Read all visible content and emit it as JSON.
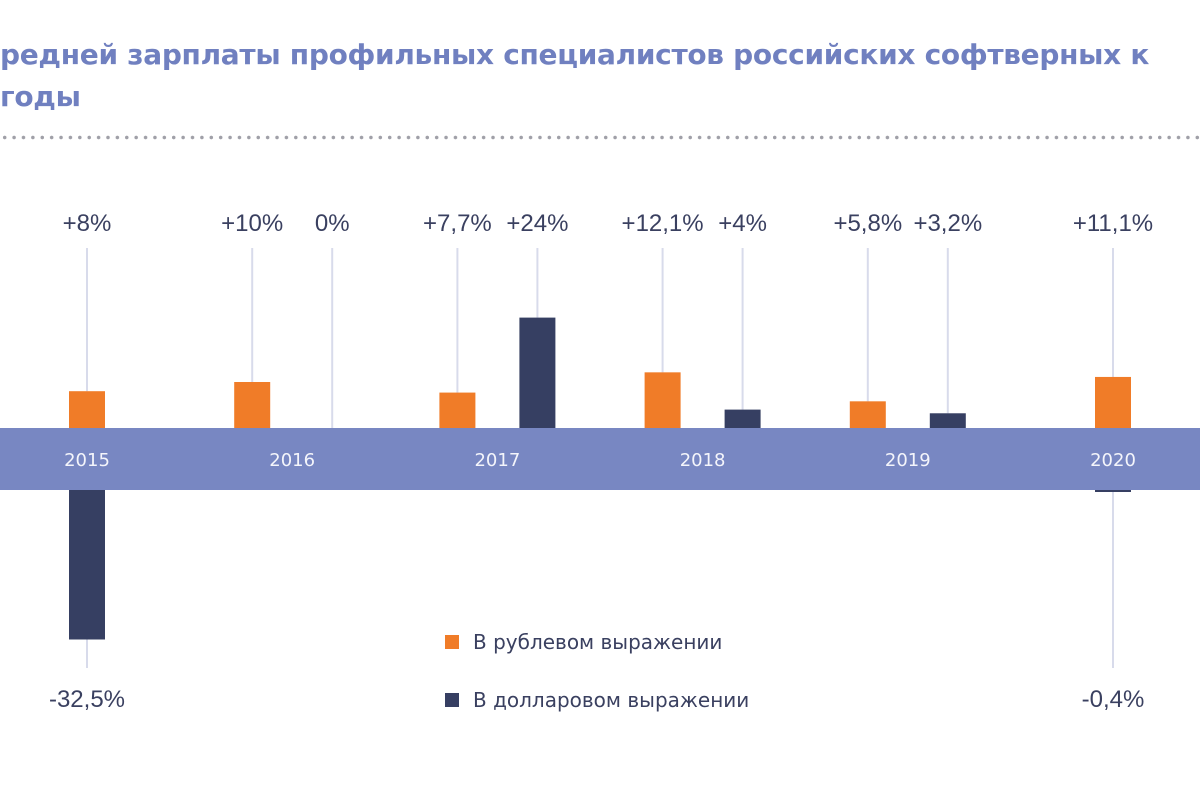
{
  "chart_data": {
    "type": "bar",
    "title_lines": [
      "редней зарплаты профильных специалистов российских софтверных к",
      "годы"
    ],
    "categories": [
      "2015",
      "2016",
      "2017",
      "2018",
      "2019",
      "2020"
    ],
    "series": [
      {
        "name": "В рублевом выражении",
        "color": "#f07c28",
        "values": [
          8,
          10,
          7.7,
          12.1,
          5.8,
          11.1
        ],
        "labels": [
          "+8%",
          "+10%",
          "+7,7%",
          "+12,1%",
          "+5,8%",
          "+11,1%"
        ]
      },
      {
        "name": "В долларовом выражении",
        "color": "#363f62",
        "values": [
          -32.5,
          0,
          24,
          4,
          3.2,
          -0.4
        ],
        "labels": [
          "-32,5%",
          "0%",
          "+24%",
          "+4%",
          "+3,2%",
          "-0,4%"
        ]
      }
    ],
    "axis_band_color": "#7887c2",
    "legend_placement": "bottom-center",
    "unit": "%"
  }
}
